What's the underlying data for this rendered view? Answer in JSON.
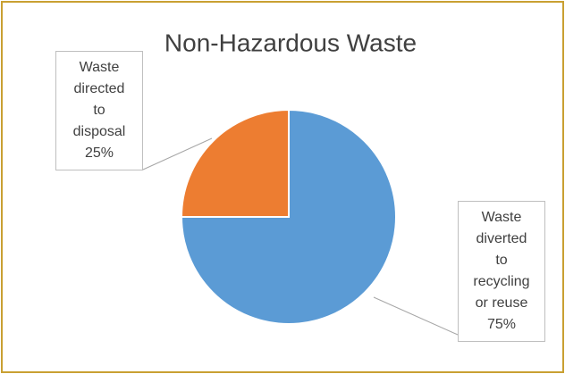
{
  "chart_data": {
    "type": "pie",
    "title": "Non-Hazardous Waste",
    "categories": [
      "Waste diverted to recycling or reuse",
      "Waste directed to disposal"
    ],
    "values": [
      75,
      25
    ],
    "value_labels": [
      "75%",
      "25%"
    ],
    "colors": [
      "#5b9bd5",
      "#ed7d31"
    ]
  }
}
